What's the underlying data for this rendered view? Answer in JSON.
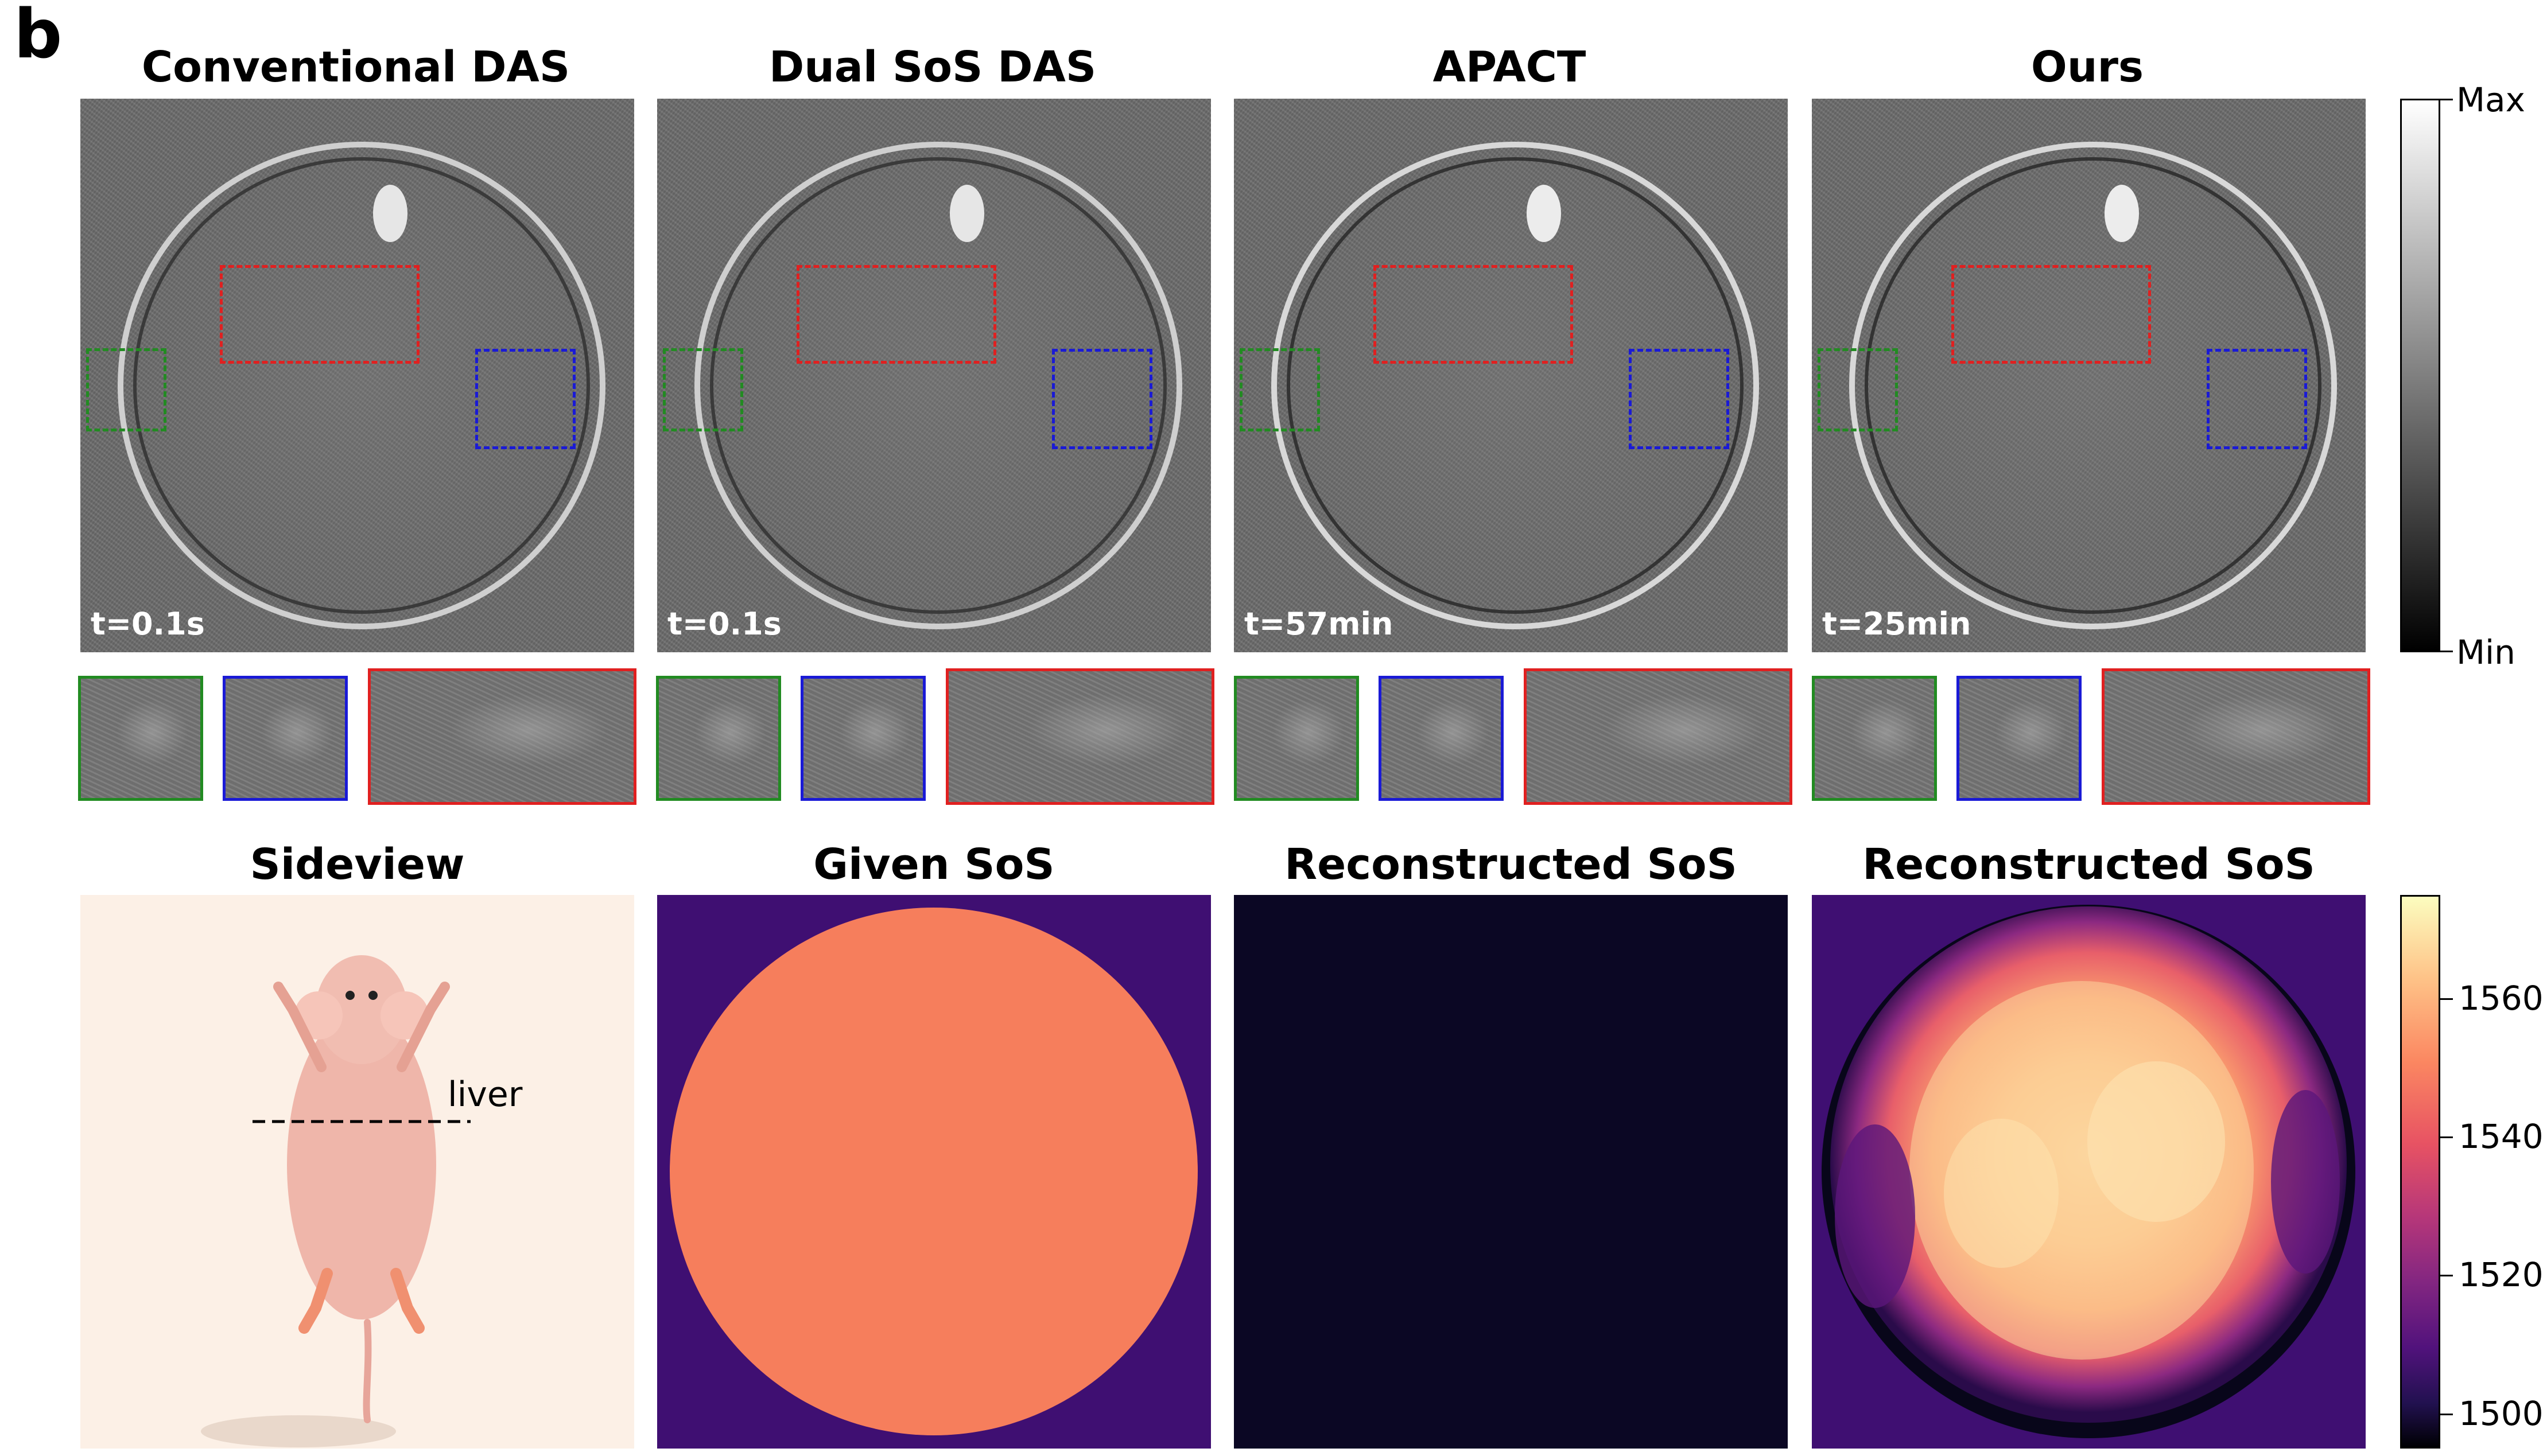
{
  "panel_letter": "b",
  "columns": [
    {
      "title": "Conventional DAS",
      "time": "t=0.1s"
    },
    {
      "title": "Dual SoS DAS",
      "time": "t=0.1s"
    },
    {
      "title": "APACT",
      "time": "t=57min"
    },
    {
      "title": "Ours",
      "time": "t=25min"
    }
  ],
  "roi_colors": {
    "green": "#228b22",
    "blue": "#1a1ad6",
    "red": "#e02020"
  },
  "intensity_colorbar": {
    "max_label": "Max",
    "min_label": "Min"
  },
  "bottom_titles": [
    "Sideview",
    "Given SoS",
    "Reconstructed SoS",
    "Reconstructed SoS"
  ],
  "sideview": {
    "annotation": "liver"
  },
  "sos_colorbar": {
    "ticks": [
      "1560",
      "1540",
      "1520",
      "1500"
    ],
    "range": [
      1495,
      1575
    ]
  },
  "colors": {
    "given_inside": "#f67e5c",
    "given_outside": "#3f0f72",
    "reconstructed_uniform": "#0b0724",
    "sideview_bg": "#fcf0e6"
  }
}
